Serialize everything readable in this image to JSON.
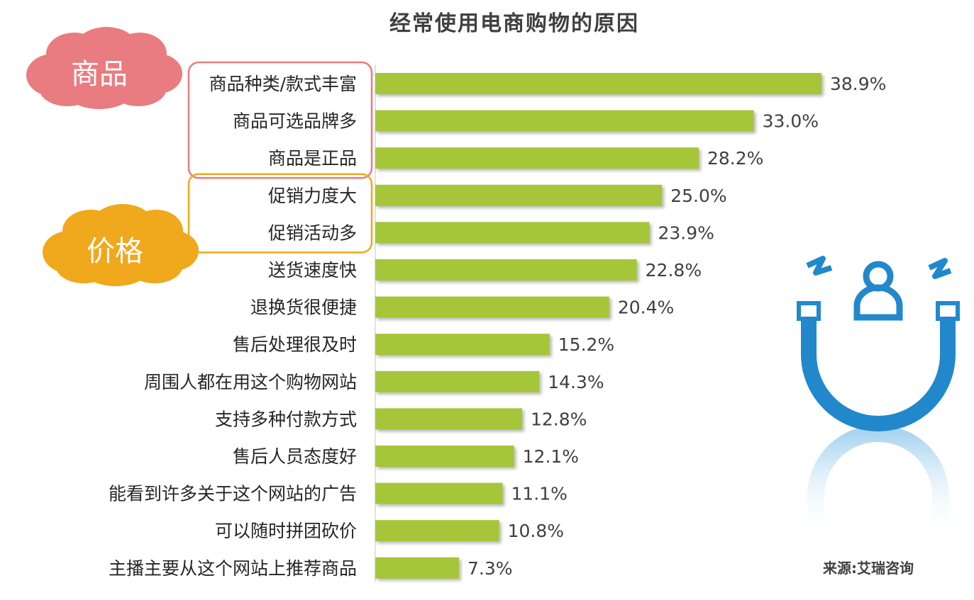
{
  "chart_data": {
    "type": "bar",
    "orientation": "horizontal",
    "title": "经常使用电商购物的原因",
    "categories": [
      "商品种类/款式丰富",
      "商品可选品牌多",
      "商品是正品",
      "促销力度大",
      "促销活动多",
      "送货速度快",
      "退换货很便捷",
      "售后处理很及时",
      "周围人都在用这个购物网站",
      "支持多种付款方式",
      "售后人员态度好",
      "能看到许多关于这个网站的广告",
      "可以随时拼团砍价",
      "主播主要从这个网站上推荐商品"
    ],
    "values": [
      38.9,
      33.0,
      28.2,
      25.0,
      23.9,
      22.8,
      20.4,
      15.2,
      14.3,
      12.8,
      12.1,
      11.1,
      10.8,
      7.3
    ],
    "value_labels": [
      "38.9%",
      "33.0%",
      "28.2%",
      "25.0%",
      "23.9%",
      "22.8%",
      "20.4%",
      "15.2%",
      "14.3%",
      "12.8%",
      "12.1%",
      "11.1%",
      "10.8%",
      "7.3%"
    ],
    "xlim": [
      0,
      38.9
    ],
    "bar_color": "#a4c639",
    "groups": [
      {
        "label": "商品",
        "color": "#e87c80",
        "categories": [
          "商品种类/款式丰富",
          "商品可选品牌多",
          "商品是正品"
        ]
      },
      {
        "label": "价格",
        "color": "#f0a81c",
        "categories": [
          "促销力度大",
          "促销活动多"
        ]
      }
    ],
    "grid": false
  },
  "source": "来源:艾瑞咨询",
  "logo": {
    "name": "magnet-user-logo",
    "color": "#2288cc"
  }
}
